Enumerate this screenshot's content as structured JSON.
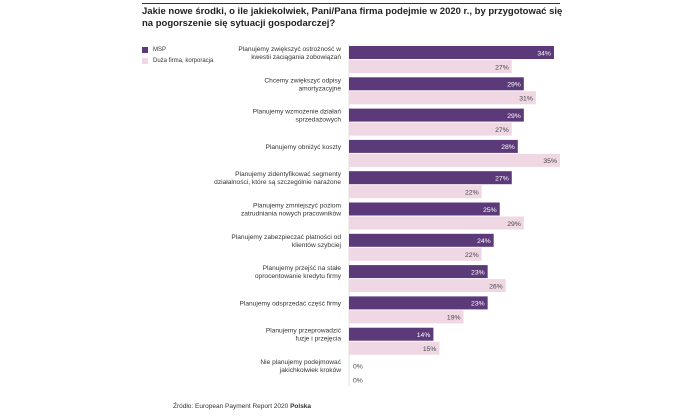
{
  "title": "Jakie nowe środki, o ile jakiekolwiek, Pani/Pana firma podejmie w 2020 r., by przygotować się na pogorszenie się sytuacji gospodarczej?",
  "source_prefix": "Źródło: European Payment Report 2020",
  "source_brand": "Polska",
  "colors": {
    "msp": "#5c3a7a",
    "large": "#efd7e4",
    "grid": "#cfcfcf"
  },
  "chart_data": {
    "type": "bar",
    "orientation": "horizontal",
    "xlim": [
      0,
      35
    ],
    "value_suffix": "%",
    "categories": [
      [
        "Planujemy zwiększyć ostrożność w",
        "kwestii zaciągania zobowiązań"
      ],
      [
        "Chcemy zwiększyć odpisy",
        "amortyzacyjne"
      ],
      [
        "Planujemy wzmożenie działań",
        "sprzedażowych"
      ],
      [
        "Planujemy obniżyć koszty"
      ],
      [
        "Planujemy zidentyfikować segmenty",
        "działalności, które są szczególnie narażone"
      ],
      [
        "Planujemy zmniejszyć poziom",
        "zatrudniania nowych pracowników"
      ],
      [
        "Planujemy zabezpieczać płatności od",
        "klientów szybciej"
      ],
      [
        "Planujemy przejść na stałe",
        "oprocentowanie kredytu firmy"
      ],
      [
        "Planujemy odsprzedać część firmy"
      ],
      [
        "Planujemy przeprowadzić",
        "fuzje i przejęcia"
      ],
      [
        "Nie planujemy podejmować",
        "jakichkolwiek kroków"
      ]
    ],
    "series": [
      {
        "name": "MSP",
        "values": [
          34,
          29,
          29,
          28,
          27,
          25,
          24,
          23,
          23,
          14,
          0
        ]
      },
      {
        "name": "Duża firma, korporacja",
        "values": [
          27,
          31,
          27,
          35,
          22,
          29,
          22,
          26,
          19,
          15,
          0
        ]
      }
    ],
    "legend_position": "top-left"
  }
}
